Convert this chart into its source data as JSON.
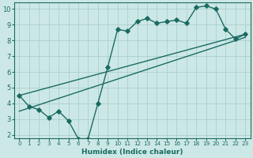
{
  "title": "",
  "xlabel": "Humidex (Indice chaleur)",
  "ylabel": "",
  "xlim": [
    -0.5,
    23.5
  ],
  "ylim": [
    1.8,
    10.4
  ],
  "yticks": [
    2,
    3,
    4,
    5,
    6,
    7,
    8,
    9,
    10
  ],
  "xticks": [
    0,
    1,
    2,
    3,
    4,
    5,
    6,
    7,
    8,
    9,
    10,
    11,
    12,
    13,
    14,
    15,
    16,
    17,
    18,
    19,
    20,
    21,
    22,
    23
  ],
  "bg_color": "#cce8e6",
  "grid_color": "#aacfcc",
  "line_color": "#1a6b62",
  "line1_x": [
    0,
    1,
    2,
    3,
    4,
    5,
    6,
    7,
    8,
    9,
    10,
    11,
    12,
    13,
    14,
    15,
    16,
    17,
    18,
    19,
    20,
    21,
    22,
    23
  ],
  "line1_y": [
    4.5,
    3.8,
    3.6,
    3.1,
    3.5,
    2.9,
    1.75,
    1.75,
    4.0,
    6.3,
    8.7,
    8.6,
    9.2,
    9.4,
    9.1,
    9.2,
    9.3,
    9.1,
    10.1,
    10.2,
    10.0,
    8.7,
    8.1,
    8.4
  ],
  "line2_x": [
    0,
    23
  ],
  "line2_y": [
    3.5,
    8.2
  ],
  "line3_x": [
    0,
    23
  ],
  "line3_y": [
    4.5,
    8.4
  ],
  "marker": "D",
  "markersize": 2.8,
  "linewidth": 1.0
}
